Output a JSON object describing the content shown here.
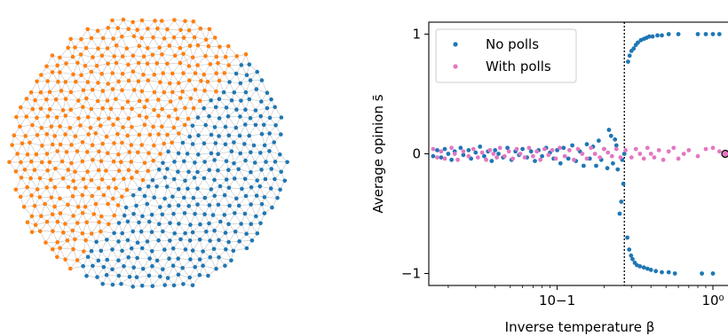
{
  "chart_data": [
    {
      "type": "diagram",
      "description_colors": {
        "group_a": "#1f77b4",
        "group_b": "#ff7f0e",
        "edges": "#bdbdbd"
      }
    },
    {
      "type": "scatter",
      "xlabel": "Inverse temperature β",
      "ylabel": "Average opinion s̄",
      "x_scale": "log",
      "xlim": [
        0.015,
        1.3
      ],
      "ylim": [
        -1.1,
        1.1
      ],
      "x_ticks": [
        {
          "value": 0.1,
          "label": "10−1"
        },
        {
          "value": 1,
          "label": "10⁰"
        }
      ],
      "y_ticks": [
        {
          "value": -1,
          "label": "−1"
        },
        {
          "value": 0,
          "label": "0"
        },
        {
          "value": 1,
          "label": "1"
        }
      ],
      "critical_line_x": 0.27,
      "legend": {
        "placement": "top-left"
      },
      "series": [
        {
          "name": "No polls",
          "color": "#1f77b4",
          "points": [
            [
              0.016,
              -0.02
            ],
            [
              0.017,
              0.03
            ],
            [
              0.018,
              -0.03
            ],
            [
              0.019,
              0.04
            ],
            [
              0.02,
              0.0
            ],
            [
              0.021,
              -0.05
            ],
            [
              0.022,
              0.02
            ],
            [
              0.024,
              0.05
            ],
            [
              0.025,
              -0.01
            ],
            [
              0.027,
              0.03
            ],
            [
              0.028,
              -0.04
            ],
            [
              0.03,
              0.01
            ],
            [
              0.032,
              0.06
            ],
            [
              0.034,
              -0.02
            ],
            [
              0.036,
              0.02
            ],
            [
              0.038,
              -0.06
            ],
            [
              0.04,
              0.03
            ],
            [
              0.042,
              0.0
            ],
            [
              0.045,
              -0.03
            ],
            [
              0.048,
              0.05
            ],
            [
              0.051,
              -0.05
            ],
            [
              0.054,
              0.02
            ],
            [
              0.057,
              -0.01
            ],
            [
              0.06,
              0.04
            ],
            [
              0.064,
              -0.03
            ],
            [
              0.068,
              0.02
            ],
            [
              0.072,
              -0.06
            ],
            [
              0.076,
              0.03
            ],
            [
              0.08,
              -0.02
            ],
            [
              0.085,
              0.05
            ],
            [
              0.09,
              0.01
            ],
            [
              0.095,
              -0.04
            ],
            [
              0.1,
              0.03
            ],
            [
              0.105,
              -0.08
            ],
            [
              0.11,
              0.05
            ],
            [
              0.118,
              -0.04
            ],
            [
              0.125,
              0.07
            ],
            [
              0.132,
              -0.06
            ],
            [
              0.14,
              0.02
            ],
            [
              0.148,
              -0.1
            ],
            [
              0.155,
              0.08
            ],
            [
              0.162,
              -0.04
            ],
            [
              0.17,
              0.06
            ],
            [
              0.178,
              -0.1
            ],
            [
              0.185,
              0.11
            ],
            [
              0.192,
              -0.05
            ],
            [
              0.2,
              0.04
            ],
            [
              0.21,
              -0.12
            ],
            [
              0.215,
              0.2
            ],
            [
              0.222,
              0.15
            ],
            [
              0.228,
              -0.08
            ],
            [
              0.235,
              0.12
            ],
            [
              0.24,
              0.07
            ],
            [
              0.245,
              -0.13
            ],
            [
              0.252,
              -0.5
            ],
            [
              0.258,
              -0.4
            ],
            [
              0.262,
              -0.05
            ],
            [
              0.266,
              -0.25
            ],
            [
              0.27,
              0.0
            ],
            [
              0.285,
              0.77
            ],
            [
              0.292,
              0.82
            ],
            [
              0.3,
              0.86
            ],
            [
              0.31,
              0.88
            ],
            [
              0.32,
              0.91
            ],
            [
              0.33,
              0.93
            ],
            [
              0.345,
              0.95
            ],
            [
              0.36,
              0.96
            ],
            [
              0.375,
              0.97
            ],
            [
              0.39,
              0.98
            ],
            [
              0.41,
              0.98
            ],
            [
              0.44,
              0.99
            ],
            [
              0.47,
              0.99
            ],
            [
              0.52,
              1.0
            ],
            [
              0.6,
              1.0
            ],
            [
              0.8,
              1.0
            ],
            [
              0.9,
              1.0
            ],
            [
              1.0,
              1.0
            ],
            [
              1.1,
              1.0
            ],
            [
              0.282,
              -0.7
            ],
            [
              0.29,
              -0.8
            ],
            [
              0.298,
              -0.85
            ],
            [
              0.305,
              -0.88
            ],
            [
              0.315,
              -0.91
            ],
            [
              0.325,
              -0.93
            ],
            [
              0.34,
              -0.94
            ],
            [
              0.36,
              -0.95
            ],
            [
              0.38,
              -0.96
            ],
            [
              0.4,
              -0.97
            ],
            [
              0.43,
              -0.98
            ],
            [
              0.47,
              -0.99
            ],
            [
              0.52,
              -0.99
            ],
            [
              0.57,
              -1.0
            ],
            [
              0.85,
              -1.0
            ],
            [
              1.0,
              -1.0
            ]
          ]
        },
        {
          "name": "With polls",
          "color": "#e377c2",
          "points": [
            [
              0.016,
              0.04
            ],
            [
              0.017,
              -0.03
            ],
            [
              0.018,
              0.02
            ],
            [
              0.019,
              -0.04
            ],
            [
              0.021,
              0.05
            ],
            [
              0.022,
              0.0
            ],
            [
              0.023,
              -0.05
            ],
            [
              0.025,
              0.02
            ],
            [
              0.027,
              -0.02
            ],
            [
              0.029,
              0.04
            ],
            [
              0.031,
              -0.03
            ],
            [
              0.033,
              0.01
            ],
            [
              0.035,
              -0.05
            ],
            [
              0.037,
              0.03
            ],
            [
              0.039,
              0.0
            ],
            [
              0.041,
              -0.03
            ],
            [
              0.043,
              0.05
            ],
            [
              0.046,
              -0.02
            ],
            [
              0.049,
              0.02
            ],
            [
              0.052,
              -0.04
            ],
            [
              0.055,
              0.04
            ],
            [
              0.058,
              0.0
            ],
            [
              0.062,
              -0.03
            ],
            [
              0.066,
              0.05
            ],
            [
              0.07,
              -0.02
            ],
            [
              0.074,
              0.02
            ],
            [
              0.078,
              -0.05
            ],
            [
              0.083,
              0.04
            ],
            [
              0.088,
              -0.01
            ],
            [
              0.093,
              0.03
            ],
            [
              0.098,
              -0.04
            ],
            [
              0.104,
              0.05
            ],
            [
              0.112,
              -0.02
            ],
            [
              0.12,
              0.03
            ],
            [
              0.128,
              -0.05
            ],
            [
              0.136,
              0.04
            ],
            [
              0.145,
              0.0
            ],
            [
              0.155,
              -0.04
            ],
            [
              0.165,
              0.05
            ],
            [
              0.175,
              0.0
            ],
            [
              0.188,
              -0.03
            ],
            [
              0.2,
              0.04
            ],
            [
              0.212,
              0.01
            ],
            [
              0.225,
              -0.02
            ],
            [
              0.24,
              0.04
            ],
            [
              0.255,
              -0.03
            ],
            [
              0.275,
              0.03
            ],
            [
              0.3,
              -0.03
            ],
            [
              0.32,
              0.04
            ],
            [
              0.34,
              0.0
            ],
            [
              0.36,
              -0.04
            ],
            [
              0.38,
              0.05
            ],
            [
              0.4,
              0.0
            ],
            [
              0.42,
              -0.03
            ],
            [
              0.45,
              0.03
            ],
            [
              0.48,
              -0.05
            ],
            [
              0.52,
              0.02
            ],
            [
              0.56,
              0.05
            ],
            [
              0.6,
              -0.04
            ],
            [
              0.65,
              0.0
            ],
            [
              0.7,
              0.03
            ],
            [
              0.8,
              -0.02
            ],
            [
              0.9,
              0.04
            ],
            [
              1.0,
              0.05
            ],
            [
              1.1,
              0.02
            ],
            [
              1.2,
              0.0
            ]
          ]
        }
      ]
    }
  ]
}
